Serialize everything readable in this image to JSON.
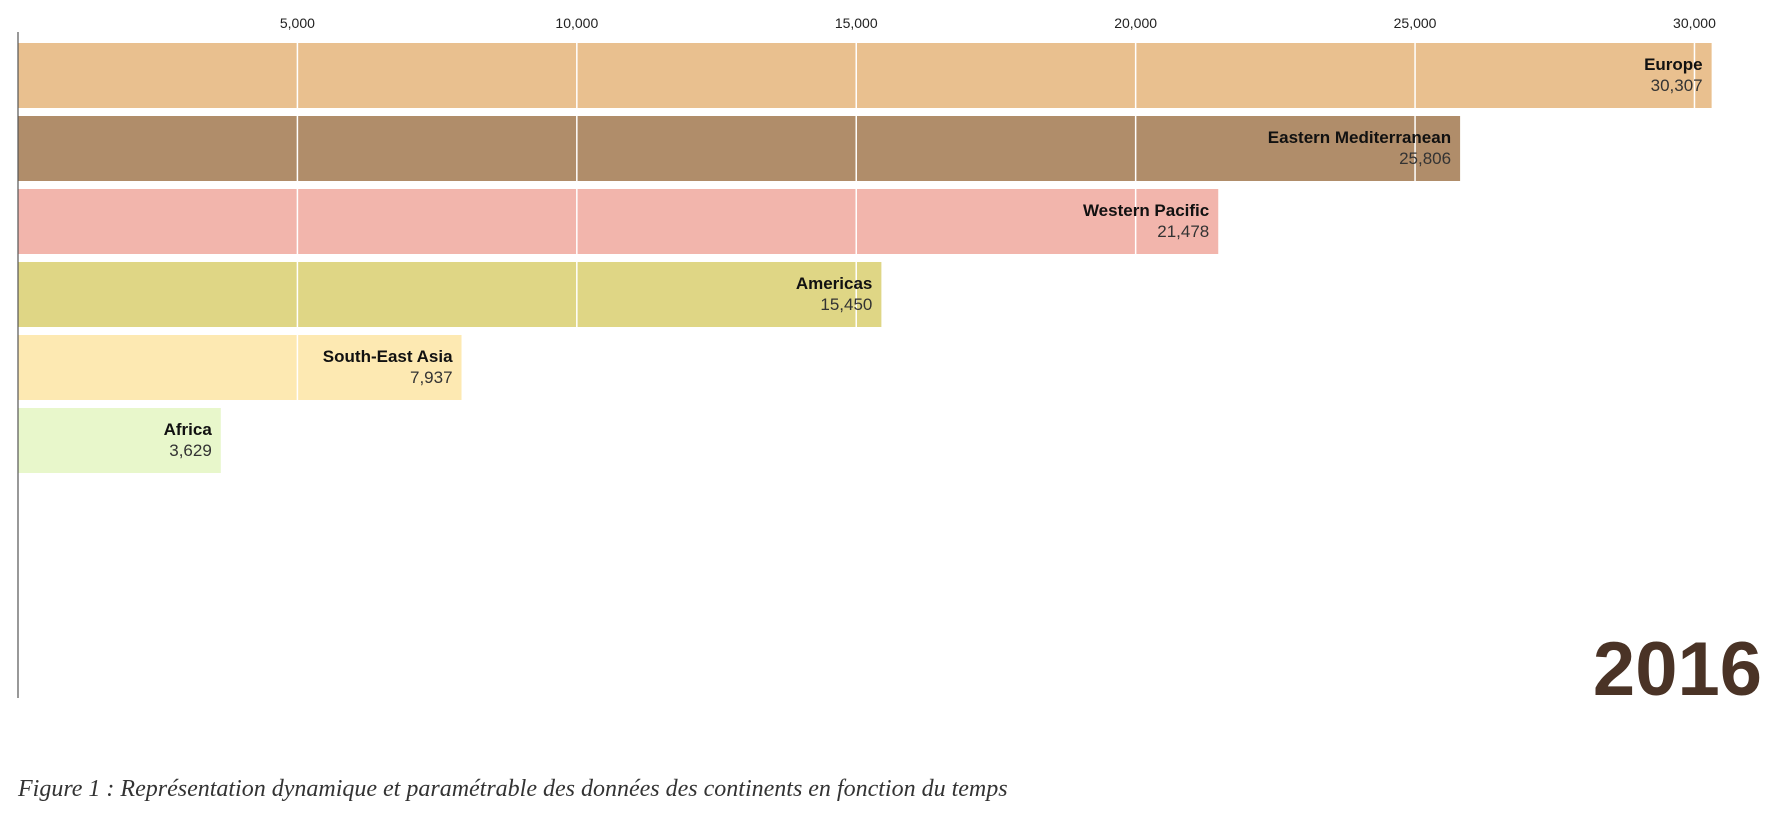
{
  "chart_data": {
    "type": "bar",
    "orientation": "horizontal",
    "categories": [
      "Europe",
      "Eastern Mediterranean",
      "Western Pacific",
      "Americas",
      "South-East Asia",
      "Africa"
    ],
    "values": [
      30307,
      25806,
      21478,
      15450,
      7937,
      3629
    ],
    "value_labels": [
      "30,307",
      "25,806",
      "21,478",
      "15,450",
      "7,937",
      "3,629"
    ],
    "colors": [
      "#e9c08f",
      "#b08d6a",
      "#f2b5ac",
      "#dfd685",
      "#fde9b2",
      "#e8f7cb"
    ],
    "x_ticks": [
      5000,
      10000,
      15000,
      20000,
      25000,
      30000
    ],
    "x_tick_labels": [
      "5,000",
      "10,000",
      "15,000",
      "20,000",
      "25,000",
      "30,000"
    ],
    "xlim": [
      0,
      30600
    ],
    "grid": true,
    "axis_position": "top",
    "year": "2016"
  },
  "caption": "Figure 1 : Représentation dynamique et paramétrable des données des continents en fonction du temps"
}
